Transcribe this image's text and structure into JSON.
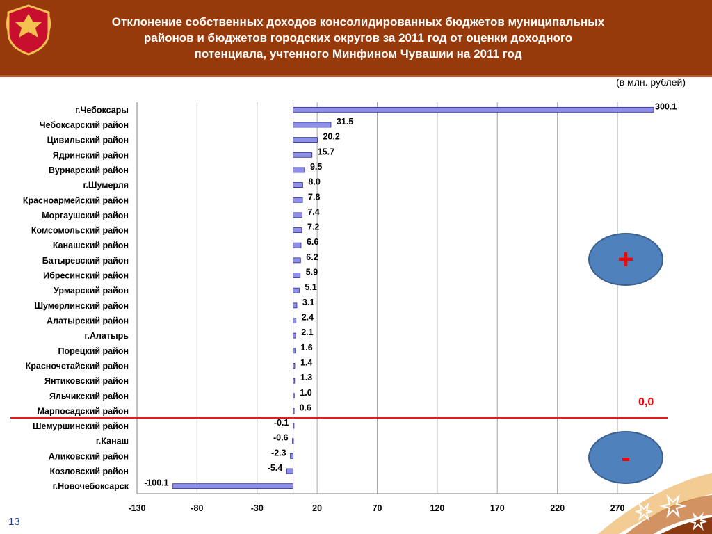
{
  "header": {
    "title_lines": [
      "Отклонение собственных доходов  консолидированных бюджетов муниципальных",
      "районов и бюджетов городских округов за 2011 год от оценки доходного",
      "потенциала, учтенного Минфином Чувашии на 2011 год"
    ]
  },
  "unit_note": "(в млн. рублей)",
  "slide_number": "13",
  "markers": {
    "plus": "+",
    "minus": "-",
    "zero": "0,0"
  },
  "colors": {
    "header": "#963a0c",
    "bar": "#8e8fe8",
    "zero_line": "#e8191e",
    "circle": "#4f81bd"
  },
  "chart_data": {
    "type": "bar",
    "orientation": "horizontal",
    "categories": [
      "г.Чебоксары",
      "Чебоксарский район",
      "Цивильский район",
      "Ядринский район",
      "Вурнарский район",
      "г.Шумерля",
      "Красноармейский район",
      "Моргаушский район",
      "Комсомольский район",
      "Канашский район",
      "Батыревский район",
      "Ибресинский район",
      "Урмарский район",
      "Шумерлинский район",
      "Алатырский район",
      "г.Алатырь",
      "Порецкий район",
      "Красночетайский район",
      "Янтиковский район",
      "Яльчикский район",
      "Марпосадский район",
      "Шемуршинский район",
      "г.Канаш",
      "Аликовский район",
      "Козловский район",
      "г.Новочебоксарск"
    ],
    "values": [
      300.1,
      31.5,
      20.2,
      15.7,
      9.5,
      8.0,
      7.8,
      7.4,
      7.2,
      6.6,
      6.2,
      5.9,
      5.1,
      3.1,
      2.4,
      2.1,
      1.6,
      1.4,
      1.3,
      1.0,
      0.6,
      -0.1,
      -0.6,
      -2.3,
      -5.4,
      -100.1
    ],
    "value_labels": [
      "300.1",
      "31.5",
      "20.2",
      "15.7",
      "9.5",
      "8.0",
      "7.8",
      "7.4",
      "7.2",
      "6.6",
      "6.2",
      "5.9",
      "5.1",
      "3.1",
      "2.4",
      "2.1",
      "1.6",
      "1.4",
      "1.3",
      "1.0",
      "0.6",
      "-0.1",
      "-0.6",
      "-2.3",
      "-5.4",
      "-100.1"
    ],
    "x_ticks": [
      "-130",
      "-80",
      "-30",
      "20",
      "70",
      "120",
      "170",
      "220",
      "270"
    ],
    "xlim": [
      -130,
      320
    ],
    "grid": "vertical"
  }
}
